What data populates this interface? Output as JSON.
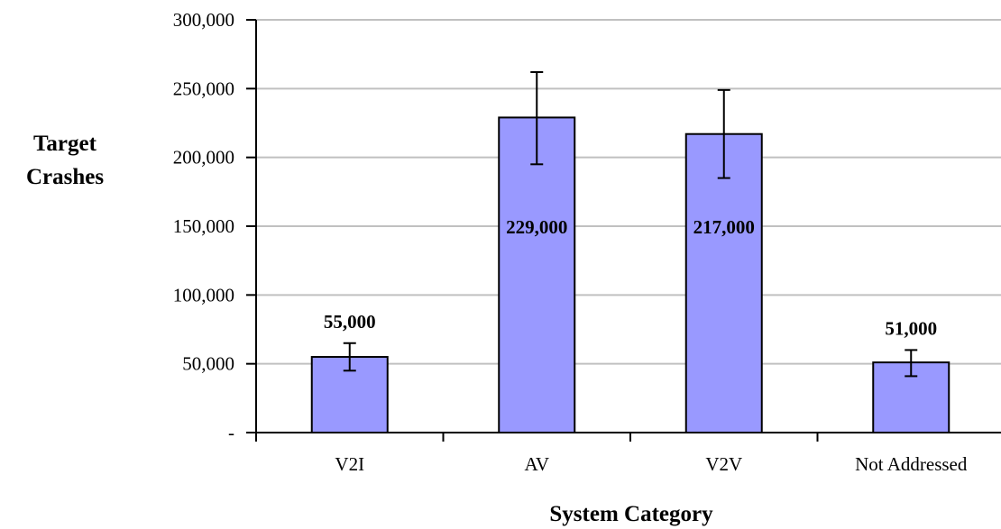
{
  "chart_data": {
    "type": "bar",
    "categories": [
      "V2I",
      "AV",
      "V2V",
      "Not Addressed"
    ],
    "values": [
      55000,
      229000,
      217000,
      51000
    ],
    "error_low": [
      45000,
      195000,
      185000,
      41000
    ],
    "error_high": [
      65000,
      262000,
      249000,
      60000
    ],
    "data_labels": [
      "55,000",
      "229,000",
      "217,000",
      "51,000"
    ],
    "xlabel": "System Category",
    "ylabel_lines": [
      "Target",
      "Crashes"
    ],
    "ylim": [
      0,
      300000
    ],
    "yticks": [
      0,
      50000,
      100000,
      150000,
      200000,
      250000,
      300000
    ],
    "ytick_labels": [
      "-",
      "50,000",
      "100,000",
      "150,000",
      "200,000",
      "250,000",
      "300,000"
    ],
    "grid": true,
    "legend": false,
    "bar_color": "#9999ff"
  }
}
